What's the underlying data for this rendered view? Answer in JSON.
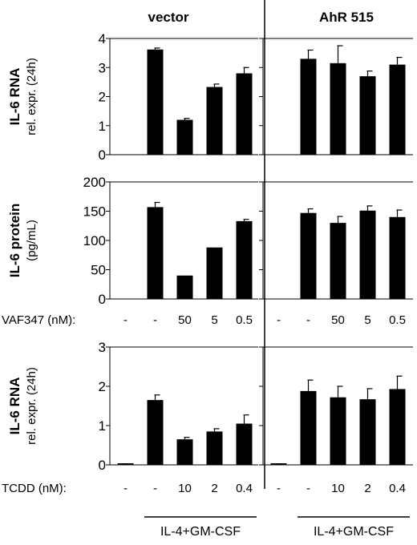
{
  "chart_data": {
    "type": "bar",
    "column_titles": [
      "vector",
      "AhR 515"
    ],
    "groups": [
      {
        "label": "IL-4+GM-CSF",
        "covers_bars": [
          1,
          2,
          3,
          4
        ]
      },
      {
        "label": "IL-4+GM-CSF",
        "covers_bars": [
          6,
          7,
          8,
          9
        ]
      }
    ],
    "panels": [
      {
        "ylabel_main": "IL-6 RNA",
        "ylabel_sub": "rel. expr. (24h)",
        "ylim": [
          0,
          4
        ],
        "yticks": [
          "0",
          "1",
          "2",
          "3",
          "4"
        ],
        "ytick_values": [
          0,
          1,
          2,
          3,
          4
        ],
        "series": [
          {
            "values": [
              0.0,
              3.62,
              1.2,
              2.33,
              2.8
            ],
            "errors": [
              0.0,
              0.05,
              0.05,
              0.1,
              0.2
            ]
          },
          {
            "values": [
              0.0,
              3.3,
              3.15,
              2.7,
              3.1
            ],
            "errors": [
              0.0,
              0.3,
              0.6,
              0.18,
              0.25
            ]
          }
        ],
        "treatment": null
      },
      {
        "ylabel_main": "IL-6 protein",
        "ylabel_sub": "(pg/mL)",
        "ylim": [
          0,
          200
        ],
        "yticks": [
          "0",
          "50",
          "100",
          "150",
          "200"
        ],
        "ytick_values": [
          0,
          50,
          100,
          150,
          200
        ],
        "series": [
          {
            "values": [
              0,
              157,
              40,
              88,
              133
            ],
            "errors": [
              0,
              8,
              0,
              0,
              3
            ]
          },
          {
            "values": [
              0,
              147,
              130,
              151,
              140
            ],
            "errors": [
              0,
              7,
              11,
              8,
              12
            ]
          }
        ],
        "treatment": {
          "label": "VAF347 (nM):",
          "doses": [
            "-",
            "-",
            "50",
            "5",
            "0.5",
            "-",
            "-",
            "50",
            "5",
            "0.5"
          ]
        }
      },
      {
        "ylabel_main": "IL-6 RNA",
        "ylabel_sub": "rel. expr. (24h)",
        "ylim": [
          0,
          3
        ],
        "yticks": [
          "0",
          "1",
          "2",
          "3"
        ],
        "ytick_values": [
          0,
          1,
          2,
          3
        ],
        "series": [
          {
            "values": [
              0.04,
              1.65,
              0.65,
              0.85,
              1.05
            ],
            "errors": [
              0,
              0.13,
              0.05,
              0.07,
              0.22
            ]
          },
          {
            "values": [
              0.04,
              1.88,
              1.72,
              1.67,
              1.93
            ],
            "errors": [
              0,
              0.28,
              0.28,
              0.27,
              0.33
            ]
          }
        ],
        "treatment": {
          "label": "TCDD (nM):",
          "doses": [
            "-",
            "-",
            "10",
            "2",
            "0.4",
            "-",
            "-",
            "10",
            "2",
            "0.4"
          ]
        }
      }
    ]
  }
}
